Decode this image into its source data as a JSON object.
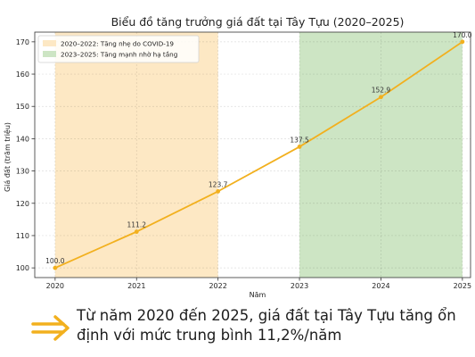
{
  "chart_data": {
    "type": "line",
    "title": "Biểu đồ tăng trưởng giá đất tại Tây Tựu (2020–2025)",
    "xlabel": "Năm",
    "ylabel": "Giá đất (trăm triệu)",
    "categories": [
      "2020",
      "2021",
      "2022",
      "2023",
      "2024",
      "2025"
    ],
    "series": [
      {
        "values": [
          100.0,
          111.2,
          123.7,
          137.5,
          152.9,
          170.0
        ],
        "data_labels": [
          "100.0",
          "111.2",
          "123.7",
          "137.5",
          "152.9",
          "170.0"
        ],
        "color": "#f2b01e"
      }
    ],
    "xlim": [
      2019.75,
      2025.1
    ],
    "ylim": [
      97,
      173
    ],
    "yticks": [
      100,
      110,
      120,
      130,
      140,
      150,
      160,
      170
    ],
    "grid": true,
    "shaded_regions": [
      {
        "x_start": 2020,
        "x_end": 2022,
        "color": "#fde8c4",
        "label": "2020–2022: Tăng nhẹ do COVID-19"
      },
      {
        "x_start": 2023,
        "x_end": 2025,
        "color": "#cde5c4",
        "label": "2023–2025: Tăng mạnh nhờ hạ tầng"
      }
    ],
    "legend_position": "top-left"
  },
  "caption": {
    "arrow_icon": "double-arrow-right-icon",
    "arrow_color": "#f2b01e",
    "text": "Từ năm 2020 đến 2025, giá đất tại Tây Tựu tăng ổn định với mức trung bình 11,2%/năm"
  }
}
